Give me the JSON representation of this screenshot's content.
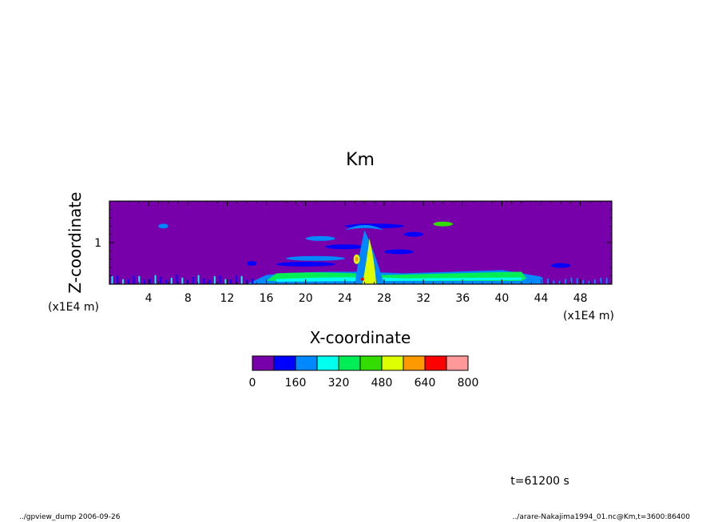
{
  "chart_data": {
    "type": "heatmap",
    "title": "Km",
    "xlabel": "X-coordinate",
    "ylabel": "Z-coordinate",
    "x_unit": "(x1E4 m)",
    "y_unit": "(x1E4 m)",
    "x_ticks": [
      4,
      8,
      12,
      16,
      20,
      24,
      28,
      32,
      36,
      40,
      44,
      48
    ],
    "x_tick_labels": [
      "4",
      "8",
      "12",
      "16",
      "20",
      "24",
      "28",
      "32",
      "36",
      "40",
      "44",
      "48"
    ],
    "xlim": [
      0,
      51.2
    ],
    "y_ticks": [
      1
    ],
    "y_tick_labels": [
      "1"
    ],
    "ylim": [
      0,
      2
    ],
    "colorbar": {
      "levels": [
        0,
        80,
        160,
        240,
        320,
        400,
        480,
        560,
        640,
        720,
        800
      ],
      "tick_values": [
        0,
        160,
        320,
        480,
        640,
        800
      ],
      "tick_labels": [
        "0",
        "160",
        "320",
        "480",
        "640",
        "800"
      ],
      "colors": [
        "#7700aa",
        "#0000ff",
        "#0088ff",
        "#00ffee",
        "#00ee55",
        "#33dd00",
        "#ddff00",
        "#ff9900",
        "#ff0000",
        "#ff9999"
      ]
    },
    "features": [
      {
        "type": "boundary_layer",
        "x_range": [
          16,
          42
        ],
        "z_range": [
          0.1,
          0.3
        ],
        "level": 320
      },
      {
        "type": "plume",
        "x_range": [
          25,
          28
        ],
        "z_range": [
          0,
          1.3
        ],
        "level": 480
      }
    ]
  },
  "annotations": {
    "time": "t=61200 s",
    "footer_left": "../gpview_dump  2006-09-26",
    "footer_right": "../arare-Nakajima1994_01.nc@Km,t=3600:86400"
  }
}
